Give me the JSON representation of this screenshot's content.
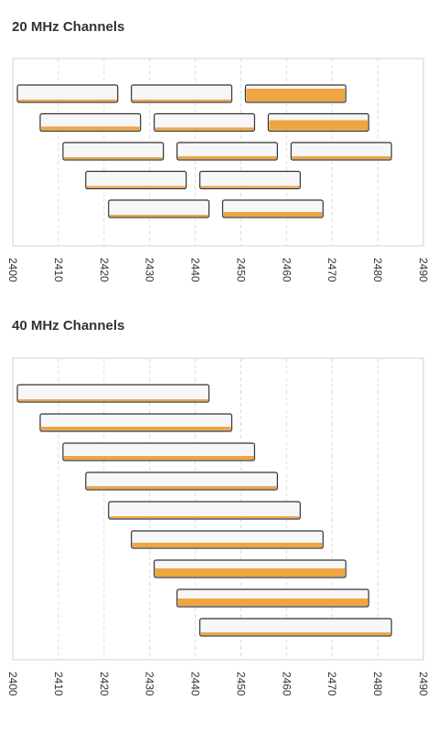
{
  "chart_data": [
    {
      "type": "bar",
      "title": "20 MHz Channels",
      "xlim": [
        2400,
        2490
      ],
      "xticks": [
        2400,
        2410,
        2420,
        2430,
        2440,
        2450,
        2460,
        2470,
        2480,
        2490
      ],
      "grid": true,
      "bars": [
        {
          "start": 2401,
          "end": 2423,
          "usage": 0.12
        },
        {
          "start": 2426,
          "end": 2448,
          "usage": 0.1
        },
        {
          "start": 2451,
          "end": 2473,
          "usage": 0.8
        },
        {
          "start": 2406,
          "end": 2428,
          "usage": 0.25
        },
        {
          "start": 2431,
          "end": 2453,
          "usage": 0.18
        },
        {
          "start": 2456,
          "end": 2478,
          "usage": 0.65
        },
        {
          "start": 2411,
          "end": 2433,
          "usage": 0.1
        },
        {
          "start": 2436,
          "end": 2458,
          "usage": 0.15
        },
        {
          "start": 2461,
          "end": 2483,
          "usage": 0.15
        },
        {
          "start": 2416,
          "end": 2438,
          "usage": 0.1
        },
        {
          "start": 2441,
          "end": 2463,
          "usage": 0.08
        },
        {
          "start": 2421,
          "end": 2443,
          "usage": 0.1
        },
        {
          "start": 2446,
          "end": 2468,
          "usage": 0.3
        }
      ]
    },
    {
      "type": "bar",
      "title": "40 MHz Channels",
      "xlim": [
        2400,
        2490
      ],
      "xticks": [
        2400,
        2410,
        2420,
        2430,
        2440,
        2450,
        2460,
        2470,
        2480,
        2490
      ],
      "grid": true,
      "bars": [
        {
          "start": 2401,
          "end": 2443,
          "usage": 0.1
        },
        {
          "start": 2406,
          "end": 2448,
          "usage": 0.25
        },
        {
          "start": 2411,
          "end": 2453,
          "usage": 0.25
        },
        {
          "start": 2416,
          "end": 2458,
          "usage": 0.18
        },
        {
          "start": 2421,
          "end": 2463,
          "usage": 0.1
        },
        {
          "start": 2426,
          "end": 2468,
          "usage": 0.3
        },
        {
          "start": 2431,
          "end": 2473,
          "usage": 0.5
        },
        {
          "start": 2436,
          "end": 2478,
          "usage": 0.45
        },
        {
          "start": 2441,
          "end": 2483,
          "usage": 0.15
        }
      ]
    }
  ],
  "colors": {
    "bar_fill": "#f7f7fa",
    "bar_stroke": "#333333",
    "usage": "#f0a640",
    "grid": "#dddddd",
    "frame": "#d0d0d0",
    "tick_text": "#333333"
  }
}
